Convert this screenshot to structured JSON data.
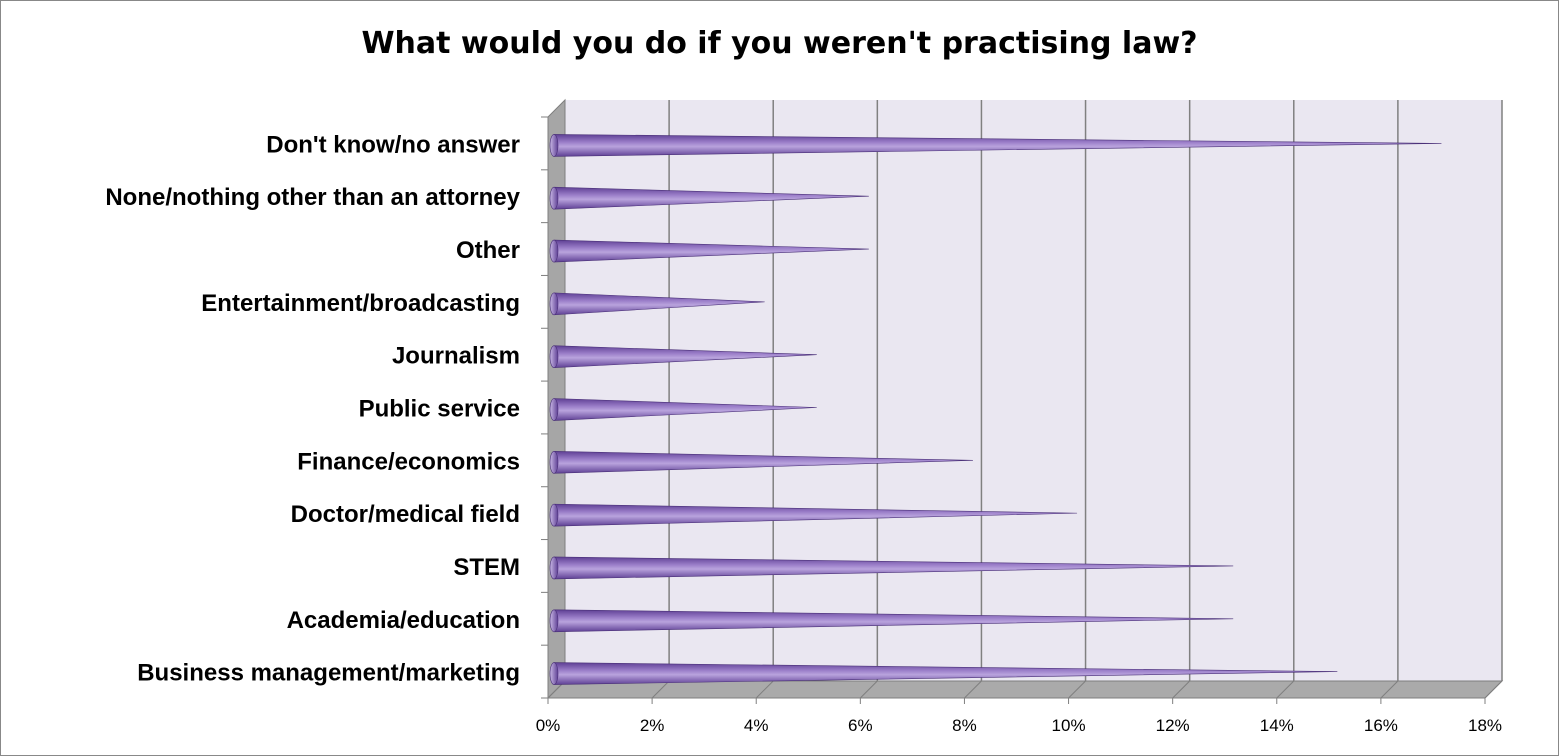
{
  "chart_data": {
    "type": "bar",
    "orientation": "horizontal",
    "style": "3d-cone",
    "title": "What would you do if you weren't practising law?",
    "xlabel": "",
    "ylabel": "",
    "categories": [
      "Don't know/no answer",
      "None/nothing other than an attorney",
      "Other",
      "Entertainment/broadcasting",
      "Journalism",
      "Public service",
      "Finance/economics",
      "Doctor/medical field",
      "STEM ",
      "Academia/education",
      "Business management/marketing"
    ],
    "series": [
      {
        "values": [
          17,
          6,
          6,
          4,
          5,
          5,
          8,
          10,
          13,
          13,
          15
        ]
      }
    ],
    "value_unit": "%",
    "xlim": [
      0,
      18
    ],
    "xticks": [
      0,
      2,
      4,
      6,
      8,
      10,
      12,
      14,
      16,
      18
    ],
    "xtick_labels": [
      "0%",
      "2%",
      "4%",
      "6%",
      "8%",
      "10%",
      "12%",
      "14%",
      "16%",
      "18%"
    ],
    "grid": true,
    "legend": "none",
    "colors": {
      "bar": "#9A7DC8",
      "bar_dark": "#5E3F94",
      "wall": "#EAE7F1",
      "floor": "#AAAAAA",
      "side_wall": "#A6A6A6",
      "gridline": "#808080"
    }
  }
}
